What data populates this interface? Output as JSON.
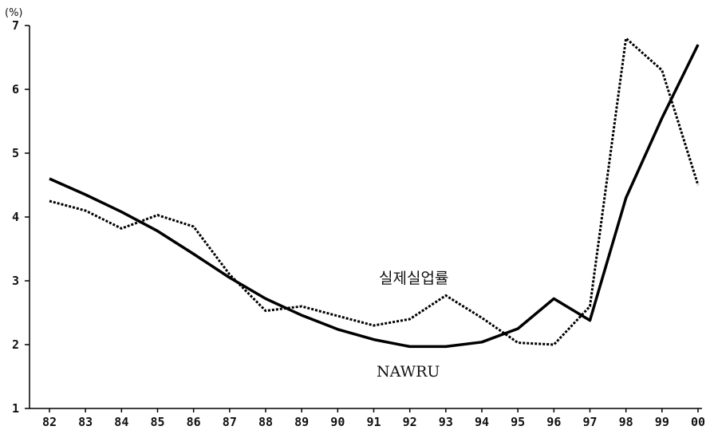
{
  "chart_data": {
    "type": "line",
    "unit_label": "(%)",
    "categories": [
      "82",
      "83",
      "84",
      "85",
      "86",
      "87",
      "88",
      "89",
      "90",
      "91",
      "92",
      "93",
      "94",
      "95",
      "96",
      "97",
      "98",
      "99",
      "00"
    ],
    "ylim": [
      1,
      7
    ],
    "yticks": [
      1,
      2,
      3,
      4,
      5,
      6,
      7
    ],
    "grid": false,
    "series": [
      {
        "name": "NAWRU",
        "style": "solid",
        "color": "#000000",
        "values": [
          4.6,
          4.35,
          4.08,
          3.78,
          3.42,
          3.05,
          2.72,
          2.46,
          2.24,
          2.08,
          1.97,
          1.97,
          2.04,
          2.25,
          2.72,
          2.38,
          4.3,
          5.55,
          6.7
        ]
      },
      {
        "name": "실제실업률",
        "style": "dotted",
        "color": "#000000",
        "values": [
          4.25,
          4.1,
          3.82,
          4.03,
          3.85,
          3.1,
          2.53,
          2.6,
          2.45,
          2.3,
          2.4,
          2.77,
          2.42,
          2.03,
          2.0,
          2.6,
          6.8,
          6.3,
          4.5
        ]
      }
    ]
  }
}
